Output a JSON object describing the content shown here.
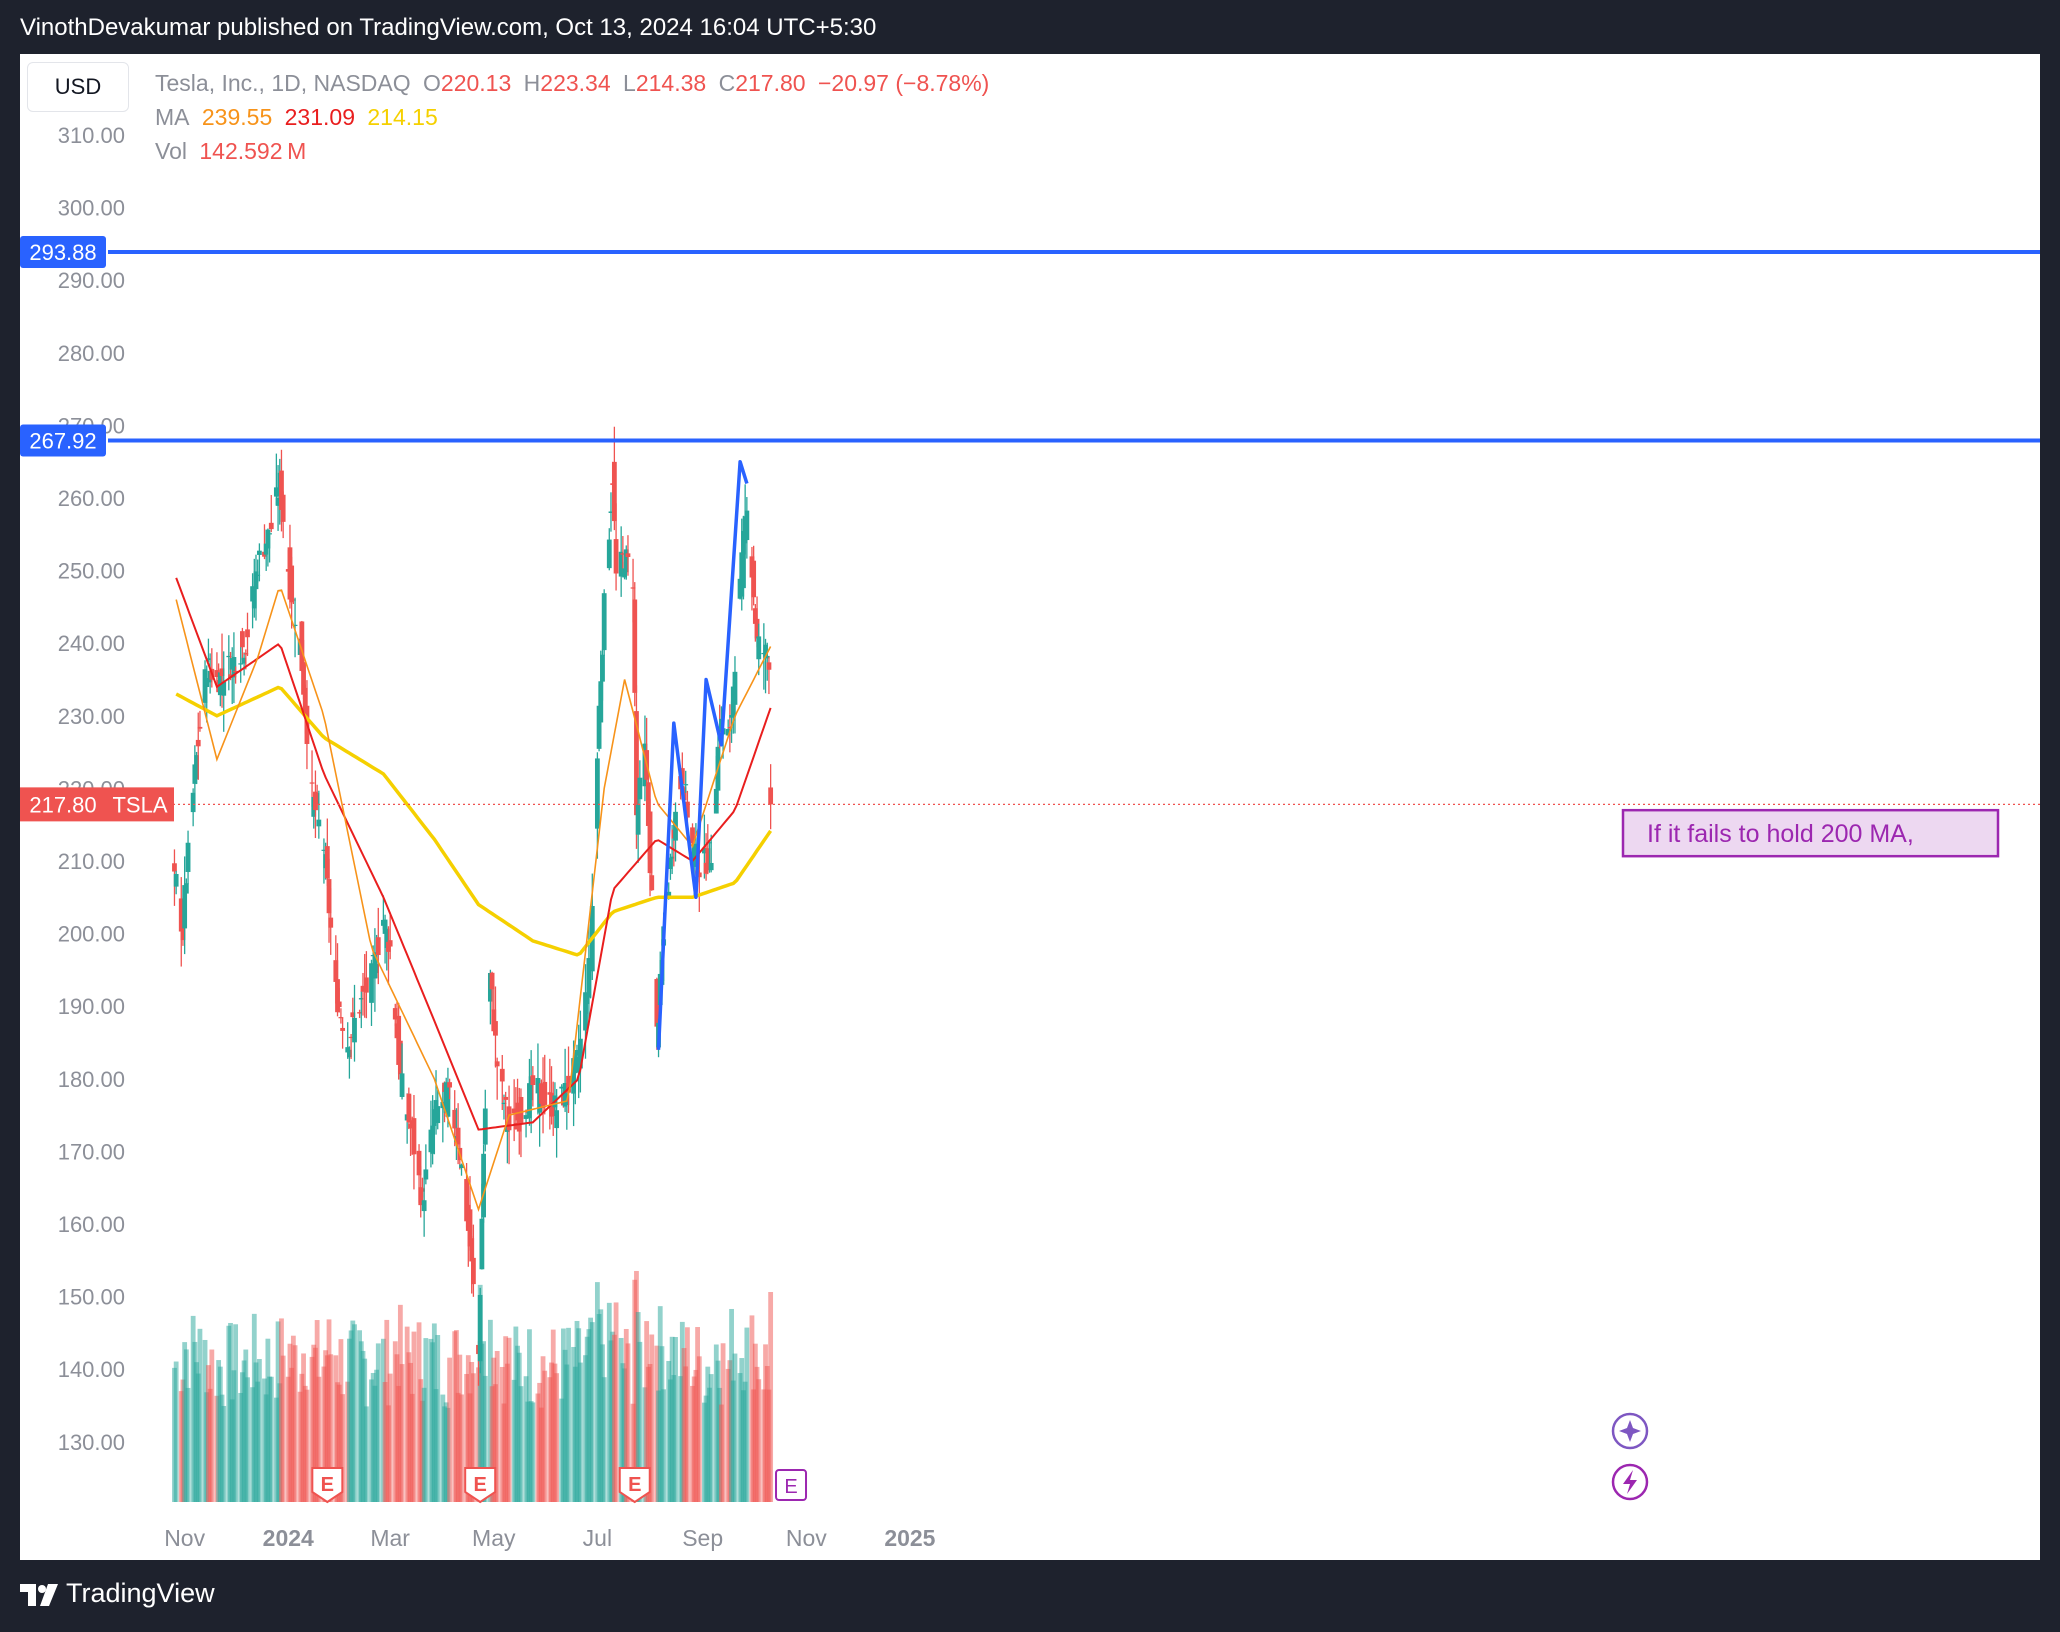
{
  "header": {
    "publisher_text": "VinothDevakumar published on TradingView.com, Oct 13, 2024 16:04 UTC+5:30"
  },
  "toolbar": {
    "currency_button": "USD"
  },
  "legend": {
    "symbol": "Tesla, Inc., 1D, NASDAQ",
    "open_label": "O",
    "open_value": "220.13",
    "high_label": "H",
    "high_value": "223.34",
    "low_label": "L",
    "low_value": "214.38",
    "close_label": "C",
    "close_value": "217.80",
    "change": "−20.97 (−8.78%)",
    "ma_label": "MA",
    "ma1": "239.55",
    "ma2": "231.09",
    "ma3": "214.15",
    "vol_label": "Vol",
    "vol_value": "142.592 M"
  },
  "price_labels": {
    "level_high": "293.88",
    "level_low": "267.92",
    "last_price": "217.80",
    "ticker": "TSLA"
  },
  "annotation": {
    "text": "If it fails to hold 200 MA,"
  },
  "event_markers": {
    "earnings": "E"
  },
  "footer": {
    "brand": "TradingView"
  },
  "colors": {
    "up": "#26a69a",
    "down": "#ef5350",
    "ma_fast": "#f7931a",
    "ma_mid": "#e91e1e",
    "ma_slow": "#f5d000",
    "horizontal_line": "#2962ff",
    "annotation_border": "#9c27b0"
  },
  "chart_data": {
    "type": "candlestick",
    "title": "Tesla, Inc., 1D, NASDAQ",
    "currency": "USD",
    "yticks": [
      310,
      300,
      290,
      280,
      270,
      260,
      250,
      240,
      230,
      220,
      210,
      200,
      190,
      180,
      170,
      160,
      150,
      140,
      130
    ],
    "ylim": [
      120,
      315
    ],
    "xticks": [
      "Nov",
      "2024",
      "Mar",
      "May",
      "Jul",
      "Sep",
      "Nov",
      "2025"
    ],
    "horizontal_levels": [
      293.88,
      267.92
    ],
    "last_close": 217.8,
    "grid": false,
    "ohlc_last": {
      "open": 220.13,
      "high": 223.34,
      "low": 214.38,
      "close": 217.8,
      "change": -20.97,
      "change_pct": -8.78
    },
    "moving_averages": [
      {
        "name": "MA",
        "value": 239.55,
        "color": "#f7931a"
      },
      {
        "name": "MA",
        "value": 231.09,
        "color": "#e91e1e"
      },
      {
        "name": "MA",
        "value": 214.15,
        "color": "#f5d000"
      }
    ],
    "volume_last_millions": 142.592,
    "price_anchors": [
      [
        "2023-10-27",
        207
      ],
      [
        "2023-10-31",
        200
      ],
      [
        "2023-11-01",
        205
      ],
      [
        "2023-11-07",
        222
      ],
      [
        "2023-11-14",
        237
      ],
      [
        "2023-11-20",
        235
      ],
      [
        "2023-11-24",
        236
      ],
      [
        "2023-12-01",
        238
      ],
      [
        "2023-12-07",
        240
      ],
      [
        "2023-12-14",
        251
      ],
      [
        "2023-12-22",
        256
      ],
      [
        "2023-12-27",
        262
      ],
      [
        "2024-01-02",
        248
      ],
      [
        "2024-01-08",
        240
      ],
      [
        "2024-01-15",
        219
      ],
      [
        "2024-01-22",
        212
      ],
      [
        "2024-01-29",
        192
      ],
      [
        "2024-02-05",
        185
      ],
      [
        "2024-02-12",
        190
      ],
      [
        "2024-02-19",
        194
      ],
      [
        "2024-02-26",
        202
      ],
      [
        "2024-03-01",
        198
      ],
      [
        "2024-03-07",
        180
      ],
      [
        "2024-03-14",
        172
      ],
      [
        "2024-03-20",
        163
      ],
      [
        "2024-03-27",
        175
      ],
      [
        "2024-04-04",
        178
      ],
      [
        "2024-04-10",
        172
      ],
      [
        "2024-04-17",
        157
      ],
      [
        "2024-04-22",
        142
      ],
      [
        "2024-04-25",
        170
      ],
      [
        "2024-04-29",
        194
      ],
      [
        "2024-05-03",
        182
      ],
      [
        "2024-05-10",
        173
      ],
      [
        "2024-05-17",
        175
      ],
      [
        "2024-05-24",
        179
      ],
      [
        "2024-05-31",
        177
      ],
      [
        "2024-06-07",
        176
      ],
      [
        "2024-06-14",
        179
      ],
      [
        "2024-06-20",
        183
      ],
      [
        "2024-06-27",
        197
      ],
      [
        "2024-07-02",
        231
      ],
      [
        "2024-07-05",
        245
      ],
      [
        "2024-07-10",
        263
      ],
      [
        "2024-07-12",
        249
      ],
      [
        "2024-07-17",
        252
      ],
      [
        "2024-07-22",
        249
      ],
      [
        "2024-07-24",
        216
      ],
      [
        "2024-07-29",
        225
      ],
      [
        "2024-08-02",
        205
      ],
      [
        "2024-08-05",
        186
      ],
      [
        "2024-08-09",
        199
      ],
      [
        "2024-08-15",
        215
      ],
      [
        "2024-08-20",
        222
      ],
      [
        "2024-08-26",
        212
      ],
      [
        "2024-08-30",
        209
      ],
      [
        "2024-09-06",
        211
      ],
      [
        "2024-09-11",
        229
      ],
      [
        "2024-09-17",
        227
      ],
      [
        "2024-09-20",
        238
      ],
      [
        "2024-09-27",
        260
      ],
      [
        "2024-10-03",
        240
      ],
      [
        "2024-10-10",
        238
      ],
      [
        "2024-10-11",
        217.8
      ]
    ],
    "ma_fast_anchors": [
      [
        "2023-10-27",
        246
      ],
      [
        "2023-11-20",
        224
      ],
      [
        "2023-12-14",
        238
      ],
      [
        "2023-12-27",
        248
      ],
      [
        "2024-01-22",
        230
      ],
      [
        "2024-02-19",
        198
      ],
      [
        "2024-03-27",
        180
      ],
      [
        "2024-04-22",
        162
      ],
      [
        "2024-05-10",
        175
      ],
      [
        "2024-06-14",
        177
      ],
      [
        "2024-07-05",
        220
      ],
      [
        "2024-07-17",
        235
      ],
      [
        "2024-08-05",
        218
      ],
      [
        "2024-08-26",
        212
      ],
      [
        "2024-09-20",
        230
      ],
      [
        "2024-10-11",
        239.55
      ]
    ],
    "ma_mid_anchors": [
      [
        "2023-10-27",
        249
      ],
      [
        "2023-11-20",
        234
      ],
      [
        "2023-12-27",
        240
      ],
      [
        "2024-01-22",
        222
      ],
      [
        "2024-02-26",
        205
      ],
      [
        "2024-03-27",
        188
      ],
      [
        "2024-04-22",
        173
      ],
      [
        "2024-05-24",
        174
      ],
      [
        "2024-06-20",
        180
      ],
      [
        "2024-07-10",
        206
      ],
      [
        "2024-08-05",
        213
      ],
      [
        "2024-08-26",
        210
      ],
      [
        "2024-09-20",
        217
      ],
      [
        "2024-10-11",
        231.09
      ]
    ],
    "ma_slow_anchors": [
      [
        "2023-10-27",
        233
      ],
      [
        "2023-11-20",
        230
      ],
      [
        "2023-12-27",
        234
      ],
      [
        "2024-01-22",
        227
      ],
      [
        "2024-02-26",
        222
      ],
      [
        "2024-03-27",
        213
      ],
      [
        "2024-04-22",
        204
      ],
      [
        "2024-05-24",
        199
      ],
      [
        "2024-06-20",
        197
      ],
      [
        "2024-07-10",
        203
      ],
      [
        "2024-08-05",
        205
      ],
      [
        "2024-08-26",
        205
      ],
      [
        "2024-09-20",
        207
      ],
      [
        "2024-10-11",
        214.15
      ]
    ],
    "drawing_zigzag": [
      [
        "2024-08-06",
        184
      ],
      [
        "2024-08-15",
        229
      ],
      [
        "2024-08-28",
        205
      ],
      [
        "2024-09-03",
        235
      ],
      [
        "2024-09-12",
        226
      ],
      [
        "2024-09-23",
        265
      ],
      [
        "2024-09-27",
        262
      ]
    ],
    "earnings_dates": [
      "2024-01-24",
      "2024-04-23",
      "2024-07-23",
      "2024-10-23"
    ]
  }
}
